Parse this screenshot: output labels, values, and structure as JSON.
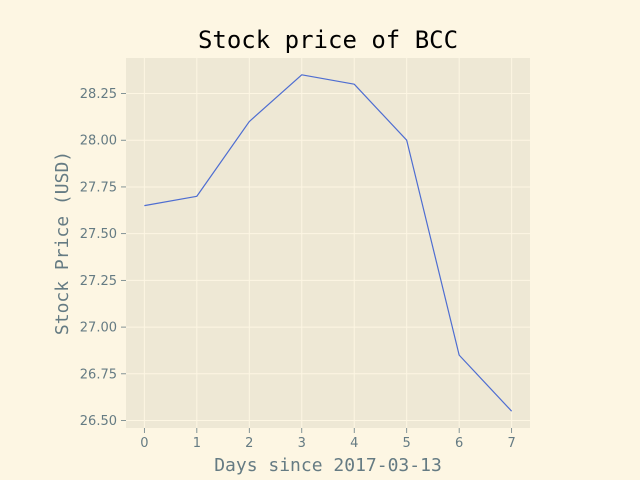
{
  "chart_data": {
    "type": "line",
    "title": "Stock price of BCC",
    "xlabel": "Days since 2017-03-13",
    "ylabel": "Stock Price (USD)",
    "x": [
      0,
      1,
      2,
      3,
      4,
      5,
      6,
      7
    ],
    "series": [
      {
        "values": [
          27.65,
          27.7,
          28.1,
          28.35,
          28.3,
          28.0,
          26.85,
          26.55
        ]
      }
    ],
    "xlim": [
      -0.35,
      7.35
    ],
    "ylim": [
      26.46,
      28.44
    ],
    "xticks": [
      "0",
      "1",
      "2",
      "3",
      "4",
      "5",
      "6",
      "7"
    ],
    "yticks": [
      "26.50",
      "26.75",
      "27.00",
      "27.25",
      "27.50",
      "27.75",
      "28.00",
      "28.25"
    ],
    "grid": true,
    "legend": "none",
    "colors": {
      "figure_background": "#fdf6e3",
      "plot_background": "#eee8d5",
      "line": "#4e6dd1",
      "grid": "#fdf6e3",
      "tick_text": "#657b83",
      "title_text": "#000000"
    }
  }
}
